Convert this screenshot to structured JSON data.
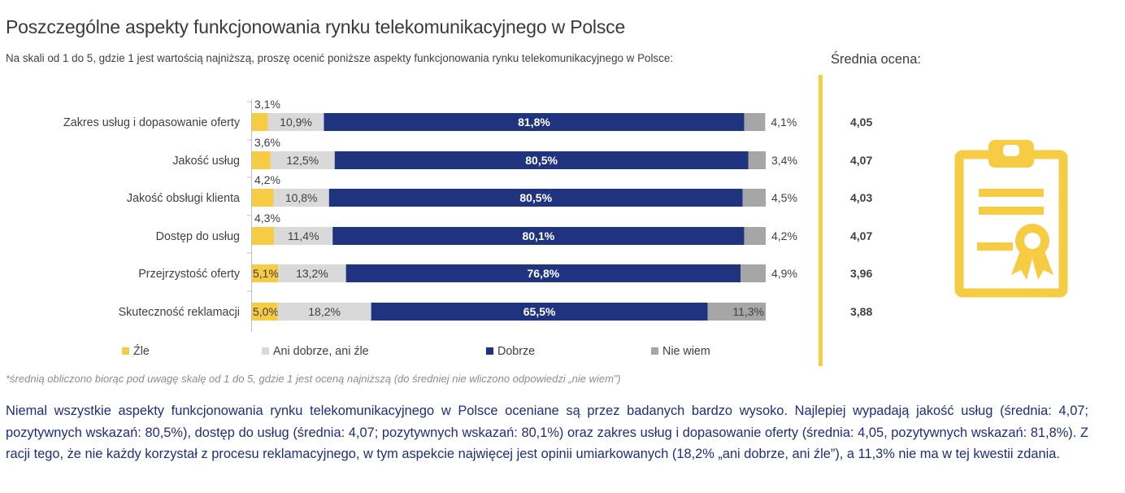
{
  "title": "Poszczególne aspekty funkcjonowania rynku telekomunikacyjnego w Polsce",
  "subtitle": "Na skali od 1 do 5, gdzie 1 jest wartością najniższą, proszę ocenić poniższe aspekty funkcjonowania rynku telekomunikacyjnego w Polsce:",
  "average_title": "Średnia ocena:",
  "footnote": "*średnią obliczono biorąc pod uwagę skalę od 1 do 5, gdzie 1 jest oceną najniższą (do średniej nie wliczono odpowiedzi „nie wiem”)",
  "summary": "Niemal wszystkie aspekty funkcjonowania rynku telekomunikacyjnego w Polsce oceniane są przez badanych bardzo wysoko. Najlepiej wypadają jakość usług (średnia: 4,07; pozytywnych wskazań: 80,5%), dostęp do usług (średnia: 4,07; pozytywnych wskazań: 80,1%) oraz zakres usług i dopasowanie oferty (średnia: 4,05, pozytywnych wskazań: 81,8%). Z racji tego, że nie każdy korzystał z procesu reklamacyjnego, w tym aspekcie najwięcej jest opinii umiarkowanych (18,2% „ani dobrze, ani źle”), a 11,3% nie ma w tej kwestii zdania.",
  "icon": "clipboard-certificate-icon",
  "colors": {
    "zle": "#f6cc45",
    "ani": "#d9d9d9",
    "dobrze": "#1f337f",
    "nie_wiem": "#a6a6a6",
    "accent": "#f6cc45"
  },
  "chart_data": {
    "type": "bar",
    "orientation": "horizontal",
    "stacked": true,
    "unit": "%",
    "xlim": [
      0,
      100
    ],
    "categories": [
      "Zakres usług  i dopasowanie oferty",
      "Jakość usług",
      "Jakość obsługi klienta",
      "Dostęp do usług",
      "Przejrzystość oferty",
      "Skuteczność reklamacji"
    ],
    "series": [
      {
        "name": "Źle",
        "key": "zle",
        "values": [
          3.1,
          3.6,
          4.2,
          4.3,
          5.1,
          5.0
        ],
        "labels": [
          "3,1%",
          "3,6%",
          "4,2%",
          "4,3%",
          "5,1%",
          "5,0%"
        ]
      },
      {
        "name": "Ani dobrze, ani źle",
        "key": "ani",
        "values": [
          10.9,
          12.5,
          10.8,
          11.4,
          13.2,
          18.2
        ],
        "labels": [
          "10,9%",
          "12,5%",
          "10,8%",
          "11,4%",
          "13,2%",
          "18,2%"
        ]
      },
      {
        "name": "Dobrze",
        "key": "dobrze",
        "values": [
          81.8,
          80.5,
          80.5,
          80.1,
          76.8,
          65.5
        ],
        "labels": [
          "81,8%",
          "80,5%",
          "80,5%",
          "80,1%",
          "76,8%",
          "65,5%"
        ]
      },
      {
        "name": "Nie wiem",
        "key": "nie_wiem",
        "values": [
          4.1,
          3.4,
          4.5,
          4.2,
          4.9,
          11.3
        ],
        "labels": [
          "4,1%",
          "3,4%",
          "4,5%",
          "4,2%",
          "4,9%",
          "11,3%"
        ]
      }
    ],
    "averages": [
      4.05,
      4.07,
      4.03,
      4.07,
      3.96,
      3.88
    ],
    "average_labels": [
      "4,05",
      "4,07",
      "4,03",
      "4,07",
      "3,96",
      "3,88"
    ],
    "legend": {
      "position": "bottom"
    },
    "grid": false
  }
}
